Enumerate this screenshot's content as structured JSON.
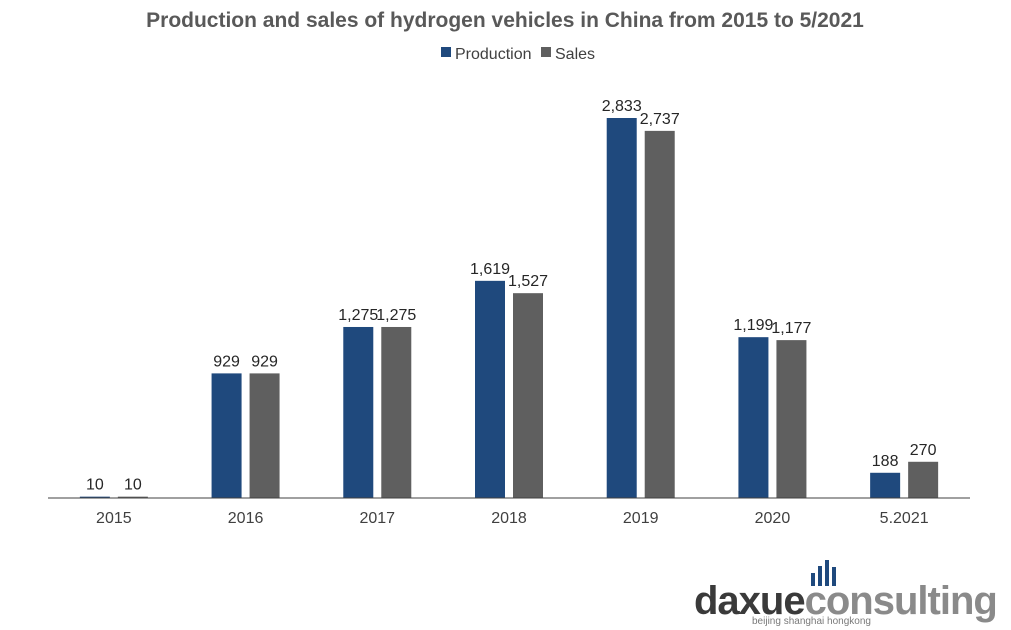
{
  "colors": {
    "production": "#1F497D",
    "sales": "#5F5F5F",
    "axis": "#404040",
    "logo_dark": "#3a3a3a",
    "logo_blue": "#1F497D",
    "logo_grey": "#8a8a8a"
  },
  "logo": {
    "part1": "daxue",
    "part2": "consulting",
    "tagline": "beijing shanghai hongkong"
  },
  "chart_data": {
    "type": "bar",
    "title": "Production and sales of hydrogen vehicles in China from 2015 to 5/2021",
    "xlabel": "",
    "ylabel": "",
    "ylim": [
      0,
      3000
    ],
    "grid": false,
    "legend_position": "top-center",
    "categories": [
      "2015",
      "2016",
      "2017",
      "2018",
      "2019",
      "2020",
      "5.2021"
    ],
    "series": [
      {
        "name": "Production",
        "values": [
          10,
          929,
          1275,
          1619,
          2833,
          1199,
          188
        ],
        "labels": [
          "10",
          "929",
          "1,275",
          "1,619",
          "2,833",
          "1,199",
          "188"
        ]
      },
      {
        "name": "Sales",
        "values": [
          10,
          929,
          1275,
          1527,
          2737,
          1177,
          270
        ],
        "labels": [
          "10",
          "929",
          "1,275",
          "1,527",
          "2,737",
          "1,177",
          "270"
        ]
      }
    ]
  }
}
